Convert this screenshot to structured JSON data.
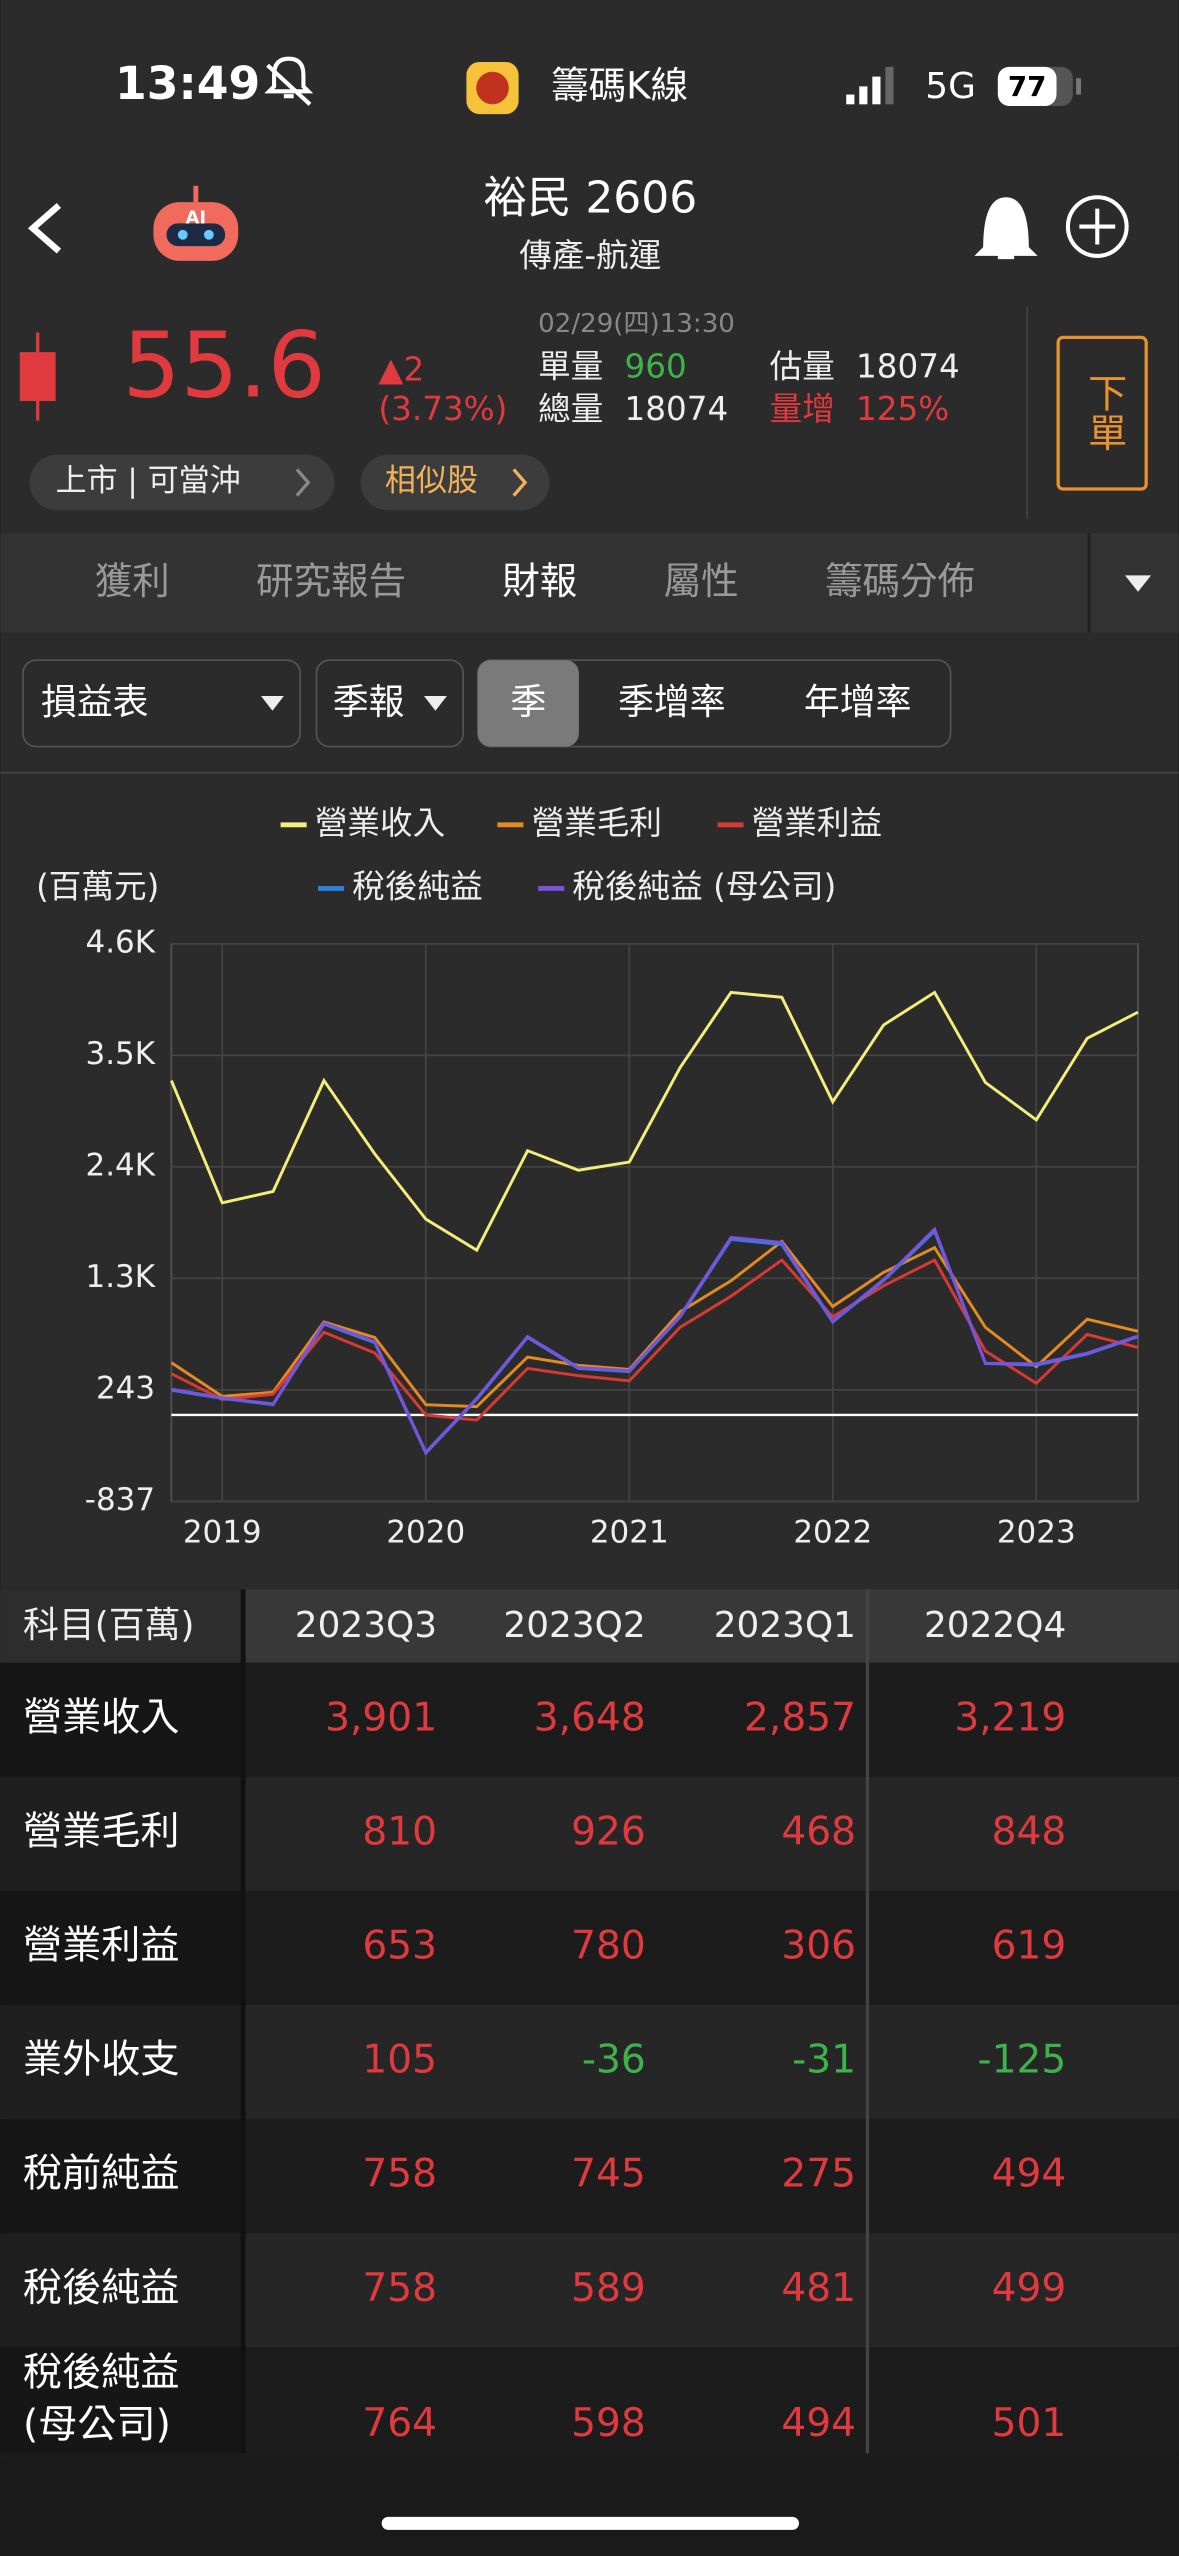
{
  "status_bar": {
    "time": "13:49",
    "app": "籌碼K線",
    "network": "5G",
    "battery": "77"
  },
  "stock": {
    "name": "裕民 2606",
    "sector": "傳產-航運",
    "price": "55.6",
    "change": "▲2",
    "change_pct": "(3.73%)",
    "timestamp": "02/29(四)13:30",
    "single_volume_label": "單量",
    "single_volume": "960",
    "est_volume_label": "估量",
    "est_volume": "18074",
    "total_volume_label": "總量",
    "total_volume": "18074",
    "volume_increase_label": "量增",
    "volume_increase": "125%",
    "order_button": "下單",
    "market_tag": "上市 | 可當沖",
    "similar": "相似股"
  },
  "tabs": [
    "獲利",
    "研究報告",
    "財報",
    "屬性",
    "籌碼分佈"
  ],
  "active_tab": 2,
  "filters": {
    "statement": "損益表",
    "period": "季報",
    "modes": [
      "季",
      "季增率",
      "年增率"
    ],
    "active_mode": 0
  },
  "chart_data": {
    "type": "line",
    "y_label": "(百萬元)",
    "categories": [
      null,
      "2019",
      null,
      null,
      null,
      "2020",
      null,
      null,
      null,
      "2021",
      null,
      null,
      null,
      "2022",
      null,
      null,
      null,
      "2023",
      null,
      null
    ],
    "ylim": [
      -837,
      4563
    ],
    "yticks": [
      -837,
      243,
      {
        "value": 1323,
        "label": "1.3K"
      },
      {
        "value": 2403,
        "label": "2.4K"
      },
      {
        "value": 3483,
        "label": "3.5K"
      },
      {
        "value": 4563,
        "label": "4.6K"
      }
    ],
    "grid": true,
    "series": [
      {
        "name": "營業收入",
        "color": "#f3ee7a",
        "values": [
          3239,
          2054,
          2165,
          3239,
          2528,
          1896,
          1596,
          2560,
          2370,
          2449,
          3365,
          4092,
          4045,
          3033,
          3776,
          4092,
          3219,
          2857,
          3648,
          3901
        ]
      },
      {
        "name": "營業毛利",
        "color": "#e38a20",
        "values": [
          506,
          180,
          220,
          900,
          750,
          100,
          80,
          560,
          480,
          440,
          1000,
          1300,
          1680,
          1050,
          1380,
          1620,
          848,
          468,
          926,
          810
        ]
      },
      {
        "name": "營業利益",
        "color": "#d63a33",
        "values": [
          400,
          150,
          200,
          800,
          600,
          0,
          -50,
          450,
          380,
          330,
          850,
          1150,
          1500,
          950,
          1250,
          1500,
          619,
          306,
          780,
          653
        ]
      },
      {
        "name": "稅後純益",
        "color": "#2f7fe0",
        "values": [
          240,
          160,
          100,
          880,
          700,
          -370,
          150,
          750,
          450,
          420,
          950,
          1700,
          1650,
          900,
          1300,
          1780,
          499,
          481,
          589,
          758
        ]
      },
      {
        "name": "稅後純益 (母公司)",
        "color": "#7b52e0",
        "values": [
          250,
          165,
          105,
          890,
          710,
          -360,
          160,
          760,
          460,
          430,
          960,
          1720,
          1670,
          910,
          1310,
          1800,
          501,
          494,
          598,
          764
        ]
      }
    ]
  },
  "table": {
    "header": [
      "科目(百萬)",
      "2023Q3",
      "2023Q2",
      "2023Q1",
      "2022Q4"
    ],
    "rows": [
      [
        [
          "營業收入"
        ],
        "3,901",
        "3,648",
        "2,857",
        "3,219"
      ],
      [
        [
          "營業毛利"
        ],
        "810",
        "926",
        "468",
        "848"
      ],
      [
        [
          "營業利益"
        ],
        "653",
        "780",
        "306",
        "619"
      ],
      [
        [
          "業外收支"
        ],
        "105",
        "-36",
        "-31",
        "-125"
      ],
      [
        [
          "稅前純益"
        ],
        "758",
        "745",
        "275",
        "494"
      ],
      [
        [
          "稅後純益"
        ],
        "758",
        "589",
        "481",
        "499"
      ],
      [
        [
          "稅後純益",
          "(母公司)"
        ],
        "764",
        "598",
        "494",
        "501"
      ]
    ]
  }
}
